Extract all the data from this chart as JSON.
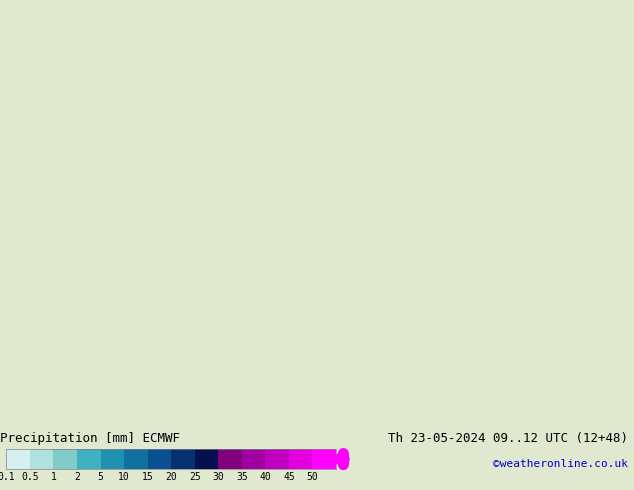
{
  "title_left": "Precipitation [mm] ECMWF",
  "title_right": "Th 23-05-2024 09..12 UTC (12+48)",
  "credit": "©weatheronline.co.uk",
  "colorbar_levels": [
    0.1,
    0.5,
    1,
    2,
    5,
    10,
    15,
    20,
    25,
    30,
    35,
    40,
    45,
    50
  ],
  "colorbar_tick_labels": [
    "0.1",
    "0.5",
    "1",
    "2",
    "5",
    "10",
    "15",
    "20",
    "25",
    "30",
    "35",
    "40",
    "45",
    "50"
  ],
  "colorbar_colors": [
    "#d4f0f0",
    "#b0e0e0",
    "#80caca",
    "#40b0c0",
    "#2090b0",
    "#1070a0",
    "#085090",
    "#063070",
    "#041050",
    "#800080",
    "#a000a0",
    "#c000c0",
    "#e000e0",
    "#ff00ff"
  ],
  "map_bg_color": "#c8e6b0",
  "map_land_color": "#d0e8b8",
  "bottom_bar_color": "#e8e8e8",
  "fig_bg_color": "#e0e8d0",
  "text_color": "#000000",
  "credit_color": "#0000cc",
  "fig_width": 6.34,
  "fig_height": 4.9
}
